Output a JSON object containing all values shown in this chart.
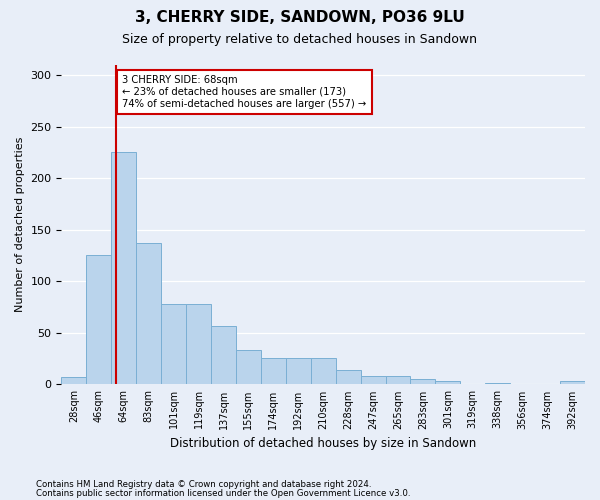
{
  "title": "3, CHERRY SIDE, SANDOWN, PO36 9LU",
  "subtitle": "Size of property relative to detached houses in Sandown",
  "xlabel": "Distribution of detached houses by size in Sandown",
  "ylabel": "Number of detached properties",
  "categories": [
    "28sqm",
    "46sqm",
    "64sqm",
    "83sqm",
    "101sqm",
    "119sqm",
    "137sqm",
    "155sqm",
    "174sqm",
    "192sqm",
    "210sqm",
    "228sqm",
    "247sqm",
    "265sqm",
    "283sqm",
    "301sqm",
    "319sqm",
    "338sqm",
    "356sqm",
    "374sqm",
    "392sqm"
  ],
  "bar_values": [
    7,
    126,
    226,
    137,
    78,
    78,
    57,
    33,
    26,
    26,
    26,
    14,
    8,
    8,
    5,
    3,
    0,
    1,
    0,
    0,
    3
  ],
  "bar_color": "#bad4ec",
  "bar_edge_color": "#7aafd4",
  "red_line_color": "#cc0000",
  "red_line_x": 1.7,
  "annotation_text_line1": "3 CHERRY SIDE: 68sqm",
  "annotation_text_line2": "← 23% of detached houses are smaller (173)",
  "annotation_text_line3": "74% of semi-detached houses are larger (557) →",
  "annotation_box_facecolor": "#ffffff",
  "annotation_box_edgecolor": "#cc0000",
  "ylim": [
    0,
    310
  ],
  "yticks": [
    0,
    50,
    100,
    150,
    200,
    250,
    300
  ],
  "bg_color": "#e8eef8",
  "footer_line1": "Contains HM Land Registry data © Crown copyright and database right 2024.",
  "footer_line2": "Contains public sector information licensed under the Open Government Licence v3.0."
}
